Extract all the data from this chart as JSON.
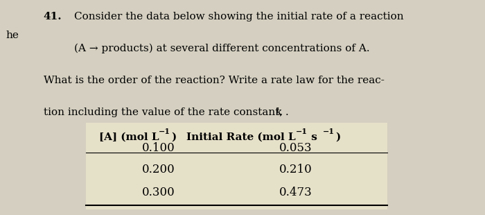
{
  "page_background": "#d4cfc0",
  "header_text_line1": "Consider the data below showing the initial rate of a reaction",
  "header_text_line2": "(A → products) at several different concentrations of A.",
  "header_text_line3": "What is the order of the reaction? Write a rate law for the reac-",
  "header_text_line4": "tion including the value of the rate constant, ",
  "header_text_line4b": "k",
  "header_text_line4c": ".",
  "question_number": "41.",
  "left_margin_text": "he",
  "col1_header_main": "[A] (mol L",
  "col1_header_super": "−1",
  "col1_header_end": ")",
  "col2_header_main": "Initial Rate (mol L",
  "col2_header_super1": "−1",
  "col2_header_mid": " s",
  "col2_header_super2": "−1",
  "col2_header_end": ")",
  "rows": [
    [
      "0.100",
      "0.053"
    ],
    [
      "0.200",
      "0.210"
    ],
    [
      "0.300",
      "0.473"
    ]
  ],
  "table_bg": "#e5e0c8",
  "font_size_body": 11,
  "font_size_header": 11
}
